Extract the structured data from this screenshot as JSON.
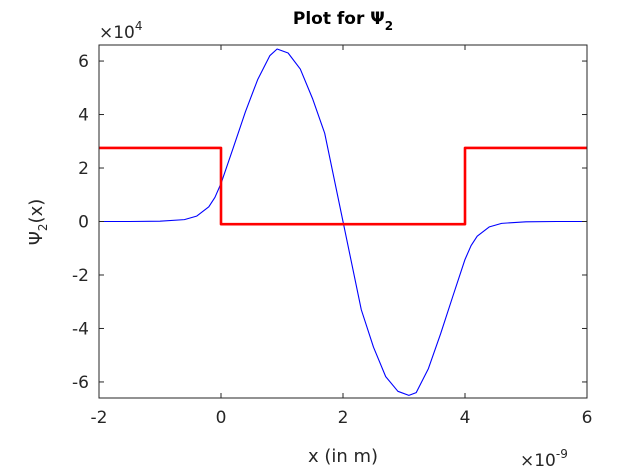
{
  "chart_data": {
    "type": "line",
    "title": "Plot for Ψ",
    "title_sub": "2",
    "xlabel": "x (in m)",
    "ylabel": "Ψ",
    "ylabel_sub": "2",
    "ylabel_suffix": "(x)",
    "x_multiplier": "×10",
    "x_multiplier_exp": "-9",
    "y_multiplier": "×10",
    "y_multiplier_exp": "4",
    "xlim": [
      -2,
      6
    ],
    "ylim": [
      -6.6,
      6.6
    ],
    "xticks": [
      -2,
      0,
      2,
      4,
      6
    ],
    "xtick_labels": [
      "-2",
      "0",
      "2",
      "4",
      "6"
    ],
    "yticks": [
      -6,
      -4,
      -2,
      0,
      2,
      4,
      6
    ],
    "ytick_labels": [
      "-6",
      "-4",
      "-2",
      "0",
      "2",
      "4",
      "6"
    ],
    "grid": false,
    "series": [
      {
        "color": "#0000ff",
        "x": [
          -2.0,
          -1.5,
          -1.0,
          -0.6,
          -0.4,
          -0.2,
          -0.1,
          0.0,
          0.2,
          0.4,
          0.6,
          0.8,
          0.92,
          1.1,
          1.3,
          1.5,
          1.7,
          2.0,
          2.3,
          2.5,
          2.7,
          2.9,
          3.08,
          3.2,
          3.4,
          3.6,
          3.8,
          4.0,
          4.1,
          4.2,
          4.4,
          4.6,
          5.0,
          5.5,
          6.0
        ],
        "y": [
          0.0,
          0.0,
          0.01,
          0.07,
          0.2,
          0.55,
          0.9,
          1.42,
          2.75,
          4.1,
          5.3,
          6.2,
          6.45,
          6.3,
          5.7,
          4.6,
          3.3,
          0.0,
          -3.3,
          -4.7,
          -5.8,
          -6.35,
          -6.5,
          -6.4,
          -5.5,
          -4.2,
          -2.8,
          -1.42,
          -0.9,
          -0.55,
          -0.2,
          -0.07,
          -0.01,
          0.0,
          0.0
        ]
      },
      {
        "color": "#ff0000",
        "x": [
          -2,
          0,
          0,
          4,
          4,
          6
        ],
        "y": [
          2.75,
          2.75,
          -0.1,
          -0.1,
          2.75,
          2.75
        ]
      }
    ]
  }
}
